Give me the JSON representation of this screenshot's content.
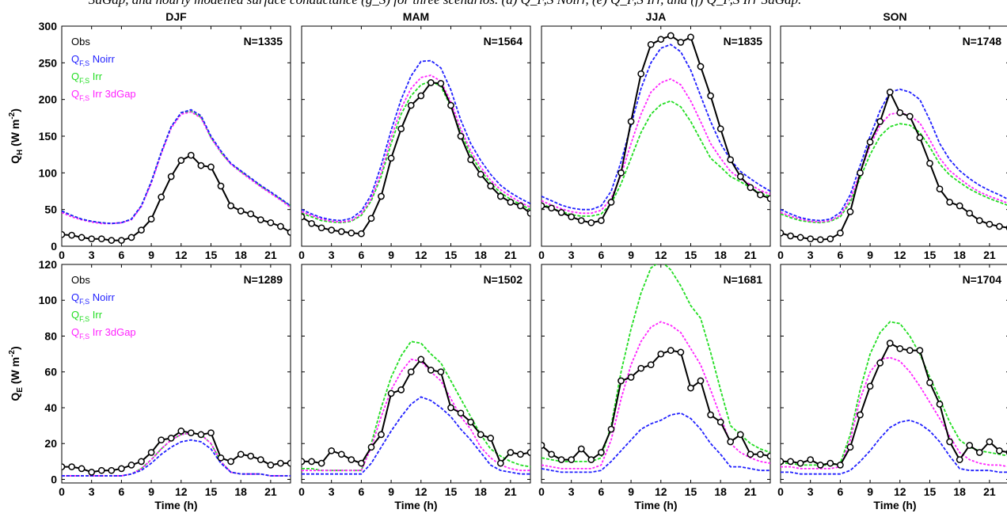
{
  "caption_fragment": "3dGap, and hourly modelled surface conductance (g_S) for three scenarios. (d) Q_F,S Noirr, (e) Q_F,S Irr, and (f) Q_F,S Irr 3dGap.",
  "colors": {
    "obs": "#000000",
    "noirr": "#1f1fff",
    "irr": "#22dd22",
    "irr3dgap": "#ff22ff"
  },
  "chart_data": [
    {
      "type": "line",
      "row": 0,
      "title": "DJF",
      "annotation": "N=1335",
      "ylabel": "Q_H (W m^-2)",
      "xlabel": "",
      "ylim": [
        0,
        300
      ],
      "yticks": [
        0,
        50,
        100,
        150,
        200,
        250,
        300
      ],
      "xlim": [
        0,
        23
      ],
      "xticks": [
        0,
        3,
        6,
        9,
        12,
        15,
        18,
        21
      ],
      "legend": [
        "Obs",
        "Q_F,S Noirr",
        "Q_F,S Irr",
        "Q_F,S Irr 3dGap"
      ],
      "series": [
        {
          "name": "Obs",
          "key": "obs",
          "markers": true,
          "values": [
            16,
            15,
            12,
            10,
            10,
            8,
            8,
            12,
            22,
            37,
            67,
            95,
            117,
            124,
            110,
            108,
            82,
            55,
            48,
            44,
            36,
            32,
            27,
            19
          ]
        },
        {
          "name": "Q_F,S Noirr",
          "key": "noirr",
          "values": [
            48,
            42,
            37,
            34,
            32,
            31,
            32,
            37,
            55,
            88,
            128,
            163,
            182,
            186,
            178,
            150,
            130,
            113,
            103,
            93,
            83,
            74,
            65,
            55
          ]
        },
        {
          "name": "Q_F,S Irr",
          "key": "irr",
          "values": [
            48,
            42,
            37,
            34,
            32,
            31,
            32,
            37,
            55,
            88,
            128,
            163,
            182,
            184,
            176,
            148,
            128,
            112,
            102,
            92,
            82,
            73,
            64,
            55
          ]
        },
        {
          "name": "Q_F,S Irr 3dGap",
          "key": "irr3dgap",
          "values": [
            46,
            40,
            36,
            33,
            31,
            31,
            32,
            36,
            54,
            86,
            126,
            161,
            180,
            183,
            175,
            148,
            128,
            112,
            101,
            91,
            81,
            72,
            63,
            53
          ]
        }
      ]
    },
    {
      "type": "line",
      "row": 0,
      "title": "MAM",
      "annotation": "N=1564",
      "ylim": [
        0,
        300
      ],
      "xlim": [
        0,
        23
      ],
      "xticks": [
        0,
        3,
        6,
        9,
        12,
        15,
        18,
        21
      ],
      "series": [
        {
          "name": "Obs",
          "key": "obs",
          "markers": true,
          "values": [
            40,
            31,
            25,
            22,
            20,
            18,
            17,
            38,
            68,
            120,
            160,
            192,
            205,
            223,
            222,
            192,
            150,
            118,
            98,
            82,
            68,
            60,
            55,
            45
          ]
        },
        {
          "name": "Q_F,S Noirr",
          "key": "noirr",
          "values": [
            50,
            44,
            39,
            36,
            35,
            38,
            48,
            70,
            110,
            158,
            200,
            232,
            252,
            253,
            243,
            213,
            172,
            140,
            117,
            98,
            83,
            73,
            65,
            58
          ]
        },
        {
          "name": "Q_F,S Irr",
          "key": "irr",
          "values": [
            45,
            40,
            35,
            33,
            32,
            34,
            42,
            62,
            95,
            140,
            180,
            205,
            220,
            225,
            218,
            190,
            155,
            125,
            103,
            86,
            73,
            64,
            57,
            50
          ]
        },
        {
          "name": "Q_F,S Irr 3dGap",
          "key": "irr3dgap",
          "values": [
            47,
            42,
            37,
            34,
            33,
            35,
            44,
            65,
            100,
            148,
            188,
            215,
            230,
            233,
            225,
            197,
            160,
            130,
            108,
            90,
            77,
            68,
            60,
            53
          ]
        }
      ]
    },
    {
      "type": "line",
      "row": 0,
      "title": "JJA",
      "annotation": "N=1835",
      "ylim": [
        0,
        300
      ],
      "xlim": [
        0,
        23
      ],
      "xticks": [
        0,
        3,
        6,
        9,
        12,
        15,
        18,
        21
      ],
      "series": [
        {
          "name": "Obs",
          "key": "obs",
          "markers": true,
          "values": [
            55,
            52,
            46,
            40,
            35,
            32,
            35,
            60,
            100,
            170,
            235,
            275,
            282,
            287,
            278,
            285,
            245,
            205,
            160,
            118,
            95,
            80,
            70,
            65
          ]
        },
        {
          "name": "Q_F,S Noirr",
          "key": "noirr",
          "values": [
            68,
            62,
            56,
            52,
            50,
            50,
            55,
            75,
            115,
            165,
            215,
            250,
            270,
            275,
            265,
            240,
            205,
            170,
            140,
            118,
            102,
            92,
            83,
            75
          ]
        },
        {
          "name": "Q_F,S Irr",
          "key": "irr",
          "values": [
            58,
            52,
            47,
            43,
            41,
            41,
            44,
            58,
            85,
            120,
            155,
            180,
            193,
            198,
            190,
            170,
            145,
            120,
            108,
            95,
            88,
            80,
            72,
            68
          ]
        },
        {
          "name": "Q_F,S Irr 3dGap",
          "key": "irr3dgap",
          "values": [
            62,
            56,
            51,
            47,
            45,
            45,
            49,
            65,
            97,
            140,
            180,
            210,
            223,
            228,
            220,
            198,
            170,
            140,
            120,
            102,
            92,
            84,
            76,
            71
          ]
        }
      ]
    },
    {
      "type": "line",
      "row": 0,
      "title": "SON",
      "annotation": "N=1748",
      "ylim": [
        0,
        300
      ],
      "xlim": [
        0,
        23
      ],
      "xticks": [
        0,
        3,
        6,
        9,
        12,
        15,
        18,
        21
      ],
      "series": [
        {
          "name": "Obs",
          "key": "obs",
          "markers": true,
          "values": [
            18,
            14,
            12,
            10,
            9,
            10,
            18,
            47,
            100,
            142,
            170,
            210,
            182,
            177,
            148,
            113,
            78,
            60,
            55,
            45,
            35,
            30,
            27,
            25
          ]
        },
        {
          "name": "Q_F,S Noirr",
          "key": "noirr",
          "values": [
            50,
            44,
            39,
            36,
            35,
            37,
            46,
            70,
            110,
            150,
            185,
            210,
            214,
            210,
            200,
            172,
            140,
            118,
            103,
            92,
            83,
            76,
            70,
            63
          ]
        },
        {
          "name": "Q_F,S Irr",
          "key": "irr",
          "values": [
            44,
            39,
            35,
            33,
            32,
            34,
            40,
            60,
            93,
            125,
            150,
            163,
            167,
            165,
            155,
            135,
            112,
            97,
            87,
            78,
            71,
            65,
            60,
            55
          ]
        },
        {
          "name": "Q_F,S Irr 3dGap",
          "key": "irr3dgap",
          "values": [
            46,
            41,
            37,
            34,
            33,
            35,
            42,
            64,
            100,
            137,
            165,
            180,
            182,
            178,
            168,
            145,
            120,
            103,
            92,
            82,
            74,
            68,
            63,
            58
          ]
        }
      ]
    },
    {
      "type": "line",
      "row": 1,
      "title": "",
      "annotation": "N=1289",
      "ylabel": "Q_E (W m^-2)",
      "xlabel": "Time (h)",
      "ylim": [
        -2,
        120
      ],
      "yticks": [
        0,
        20,
        40,
        60,
        80,
        100,
        120
      ],
      "xlim": [
        0,
        23
      ],
      "xticks": [
        0,
        3,
        6,
        9,
        12,
        15,
        18,
        21
      ],
      "legend": [
        "Obs",
        "Q_F,S Noirr",
        "Q_F,S Irr",
        "Q_F,S Irr 3dGap"
      ],
      "series": [
        {
          "name": "Obs",
          "key": "obs",
          "markers": true,
          "values": [
            7,
            7,
            6,
            4,
            5,
            5,
            6,
            8,
            10,
            15,
            22,
            23,
            27,
            26,
            25,
            26,
            12,
            10,
            14,
            13,
            11,
            8,
            9,
            9
          ]
        },
        {
          "name": "Q_F,S Noirr",
          "key": "noirr",
          "values": [
            2,
            2,
            2,
            2,
            2,
            2,
            2,
            3,
            5,
            9,
            14,
            18,
            21,
            22,
            21,
            17,
            9,
            4,
            3,
            3,
            3,
            2,
            2,
            2
          ]
        },
        {
          "name": "Q_F,S Irr",
          "key": "irr",
          "values": [
            2,
            2,
            2,
            2,
            2,
            2,
            2,
            3,
            6,
            11,
            17,
            22,
            25,
            26,
            25,
            20,
            10,
            4,
            3,
            3,
            3,
            2,
            2,
            2
          ]
        },
        {
          "name": "Q_F,S Irr 3dGap",
          "key": "irr3dgap",
          "values": [
            2,
            2,
            2,
            2,
            2,
            2,
            2,
            3,
            6,
            11,
            17,
            22,
            25,
            26,
            25,
            20,
            10,
            4,
            3,
            3,
            3,
            2,
            2,
            2
          ]
        }
      ]
    },
    {
      "type": "line",
      "row": 1,
      "title": "",
      "annotation": "N=1502",
      "xlabel": "Time (h)",
      "ylim": [
        -2,
        120
      ],
      "xlim": [
        0,
        23
      ],
      "xticks": [
        0,
        3,
        6,
        9,
        12,
        15,
        18,
        21
      ],
      "series": [
        {
          "name": "Obs",
          "key": "obs",
          "markers": true,
          "values": [
            10,
            10,
            9,
            16,
            14,
            11,
            9,
            18,
            25,
            48,
            50,
            60,
            67,
            61,
            60,
            40,
            37,
            32,
            25,
            23,
            9,
            15,
            14,
            15
          ]
        },
        {
          "name": "Q_F,S Noirr",
          "key": "noirr",
          "values": [
            3,
            3,
            3,
            3,
            3,
            3,
            3,
            9,
            18,
            27,
            35,
            42,
            46,
            44,
            40,
            35,
            28,
            22,
            15,
            8,
            5,
            4,
            3,
            3
          ]
        },
        {
          "name": "Q_F,S Irr",
          "key": "irr",
          "values": [
            6,
            6,
            5,
            5,
            5,
            5,
            5,
            20,
            40,
            57,
            69,
            77,
            76,
            70,
            65,
            55,
            45,
            35,
            25,
            17,
            13,
            10,
            8,
            7
          ]
        },
        {
          "name": "Q_F,S Irr 3dGap",
          "key": "irr3dgap",
          "values": [
            5,
            5,
            5,
            5,
            5,
            5,
            5,
            18,
            35,
            50,
            60,
            67,
            66,
            60,
            55,
            45,
            35,
            28,
            18,
            12,
            8,
            6,
            5,
            5
          ]
        }
      ]
    },
    {
      "type": "line",
      "row": 1,
      "title": "",
      "annotation": "N=1681",
      "xlabel": "Time (h)",
      "ylim": [
        -2,
        120
      ],
      "xlim": [
        0,
        23
      ],
      "xticks": [
        0,
        3,
        6,
        9,
        12,
        15,
        18,
        21
      ],
      "series": [
        {
          "name": "Obs",
          "key": "obs",
          "markers": true,
          "values": [
            19,
            14,
            11,
            11,
            17,
            11,
            15,
            28,
            55,
            57,
            62,
            64,
            70,
            72,
            71,
            51,
            55,
            36,
            32,
            21,
            25,
            14,
            14,
            13
          ]
        },
        {
          "name": "Q_F,S Noirr",
          "key": "noirr",
          "values": [
            6,
            5,
            4,
            4,
            4,
            4,
            5,
            10,
            16,
            22,
            28,
            31,
            33,
            36,
            37,
            34,
            28,
            20,
            14,
            7,
            7,
            6,
            5,
            5
          ]
        },
        {
          "name": "Q_F,S Irr",
          "key": "irr",
          "values": [
            12,
            11,
            10,
            10,
            10,
            10,
            12,
            30,
            60,
            84,
            104,
            118,
            122,
            117,
            108,
            97,
            90,
            71,
            50,
            30,
            25,
            20,
            17,
            15
          ]
        },
        {
          "name": "Q_F,S Irr 3dGap",
          "key": "irr3dgap",
          "values": [
            8,
            7,
            6,
            6,
            6,
            6,
            8,
            22,
            45,
            64,
            77,
            85,
            88,
            86,
            82,
            73,
            64,
            50,
            35,
            20,
            15,
            12,
            10,
            9
          ]
        }
      ]
    },
    {
      "type": "line",
      "row": 1,
      "title": "",
      "annotation": "N=1704",
      "xlabel": "Time (h)",
      "ylim": [
        -2,
        120
      ],
      "xlim": [
        0,
        23
      ],
      "xticks": [
        0,
        3,
        6,
        9,
        12,
        15,
        18,
        21
      ],
      "series": [
        {
          "name": "Obs",
          "key": "obs",
          "markers": true,
          "values": [
            10,
            10,
            9,
            11,
            8,
            9,
            8,
            18,
            36,
            52,
            65,
            76,
            73,
            72,
            72,
            54,
            42,
            21,
            11,
            19,
            15,
            21,
            16,
            15
          ]
        },
        {
          "name": "Q_F,S Noirr",
          "key": "noirr",
          "values": [
            4,
            4,
            3,
            3,
            3,
            3,
            3,
            5,
            10,
            16,
            23,
            29,
            32,
            33,
            31,
            27,
            21,
            13,
            6,
            5,
            5,
            5,
            4,
            4
          ]
        },
        {
          "name": "Q_F,S Irr",
          "key": "irr",
          "values": [
            9,
            9,
            8,
            8,
            8,
            8,
            9,
            25,
            50,
            70,
            82,
            88,
            87,
            80,
            70,
            57,
            45,
            32,
            22,
            18,
            16,
            15,
            14,
            13
          ]
        },
        {
          "name": "Q_F,S Irr 3dGap",
          "key": "irr3dgap",
          "values": [
            7,
            7,
            6,
            6,
            6,
            6,
            7,
            22,
            45,
            60,
            67,
            68,
            66,
            60,
            52,
            43,
            34,
            24,
            15,
            11,
            9,
            8,
            8,
            7
          ]
        }
      ]
    }
  ]
}
